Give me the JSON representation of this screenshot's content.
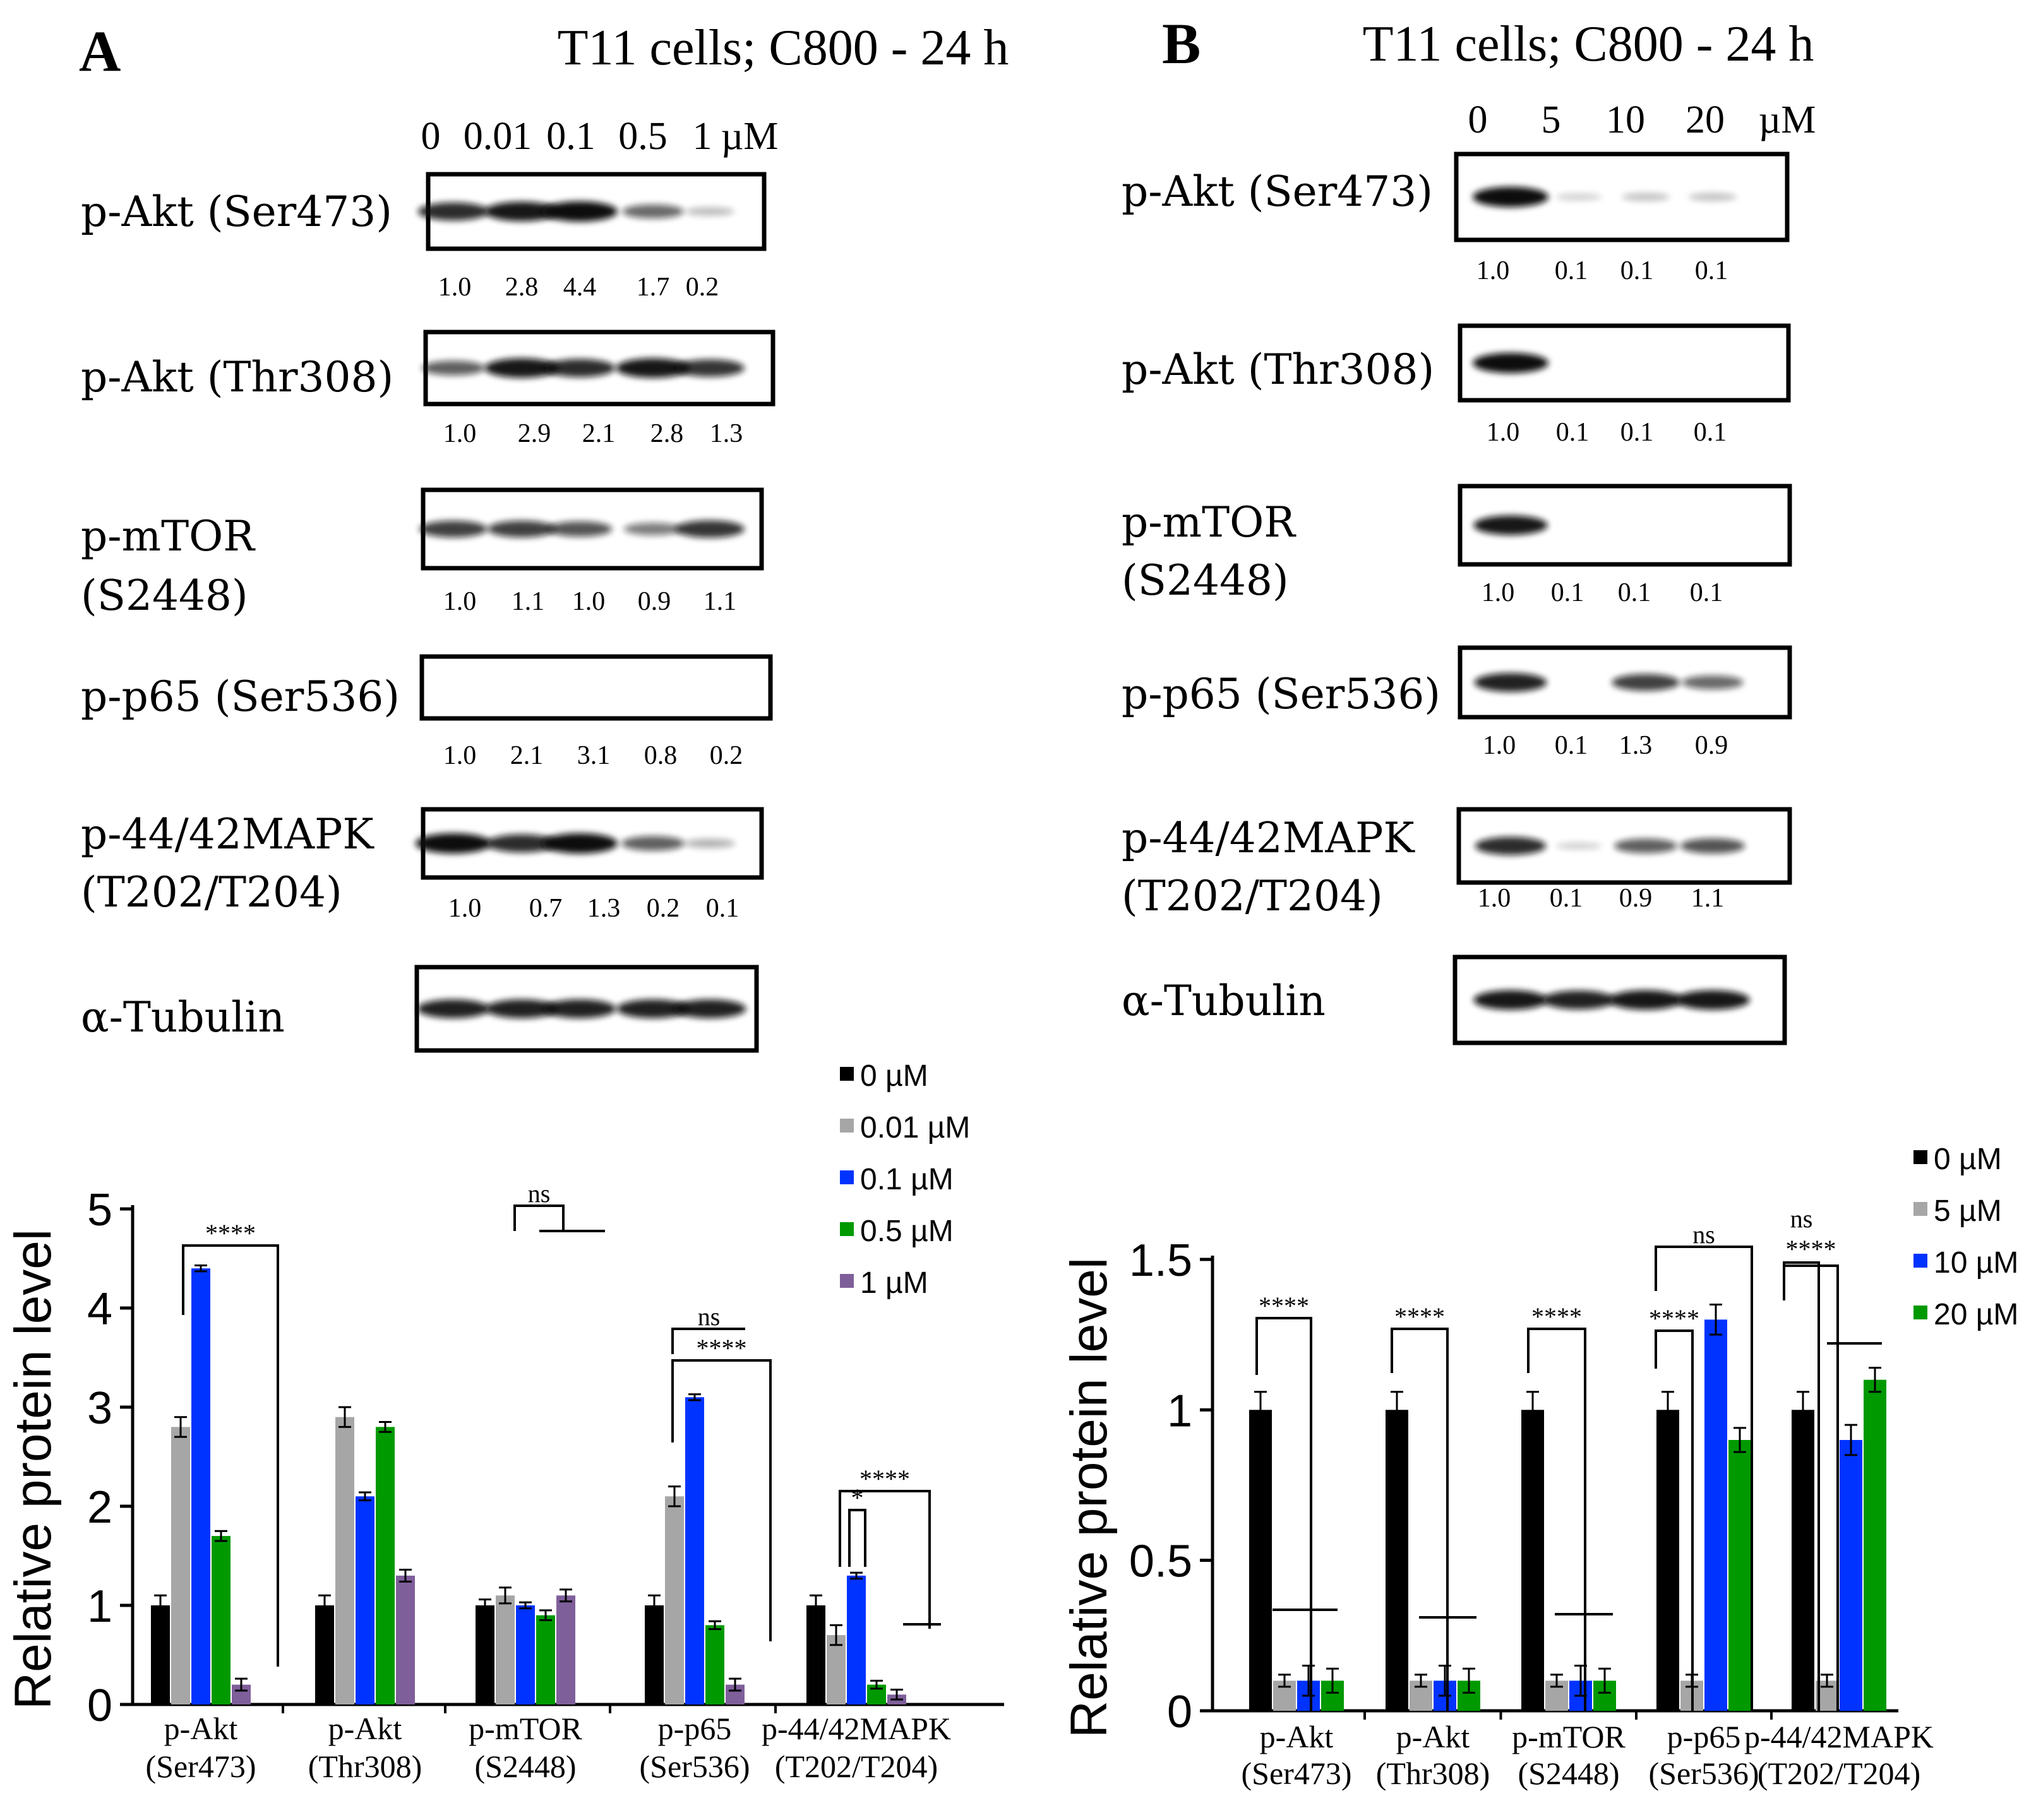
{
  "panels": [
    {
      "letter": "A",
      "title": "T11 cells; C800 - 24 h",
      "concentrations": [
        "0",
        "0.01",
        "0.1",
        "0.5",
        "1",
        "µM"
      ],
      "rows": [
        {
          "label": [
            "p-Akt (Ser473)"
          ],
          "quant": [
            "1.0",
            "2.8",
            "4.4",
            "1.7",
            "0.2"
          ],
          "intensity": [
            0.85,
            0.95,
            1.0,
            0.55,
            0.15
          ]
        },
        {
          "label": [
            "p-Akt (Thr308)"
          ],
          "quant": [
            "1.0",
            "2.9",
            "2.1",
            "2.8",
            "1.3"
          ],
          "intensity": [
            0.6,
            0.95,
            0.85,
            0.95,
            0.8
          ]
        },
        {
          "label": [
            "p-mTOR",
            "(S2448)"
          ],
          "quant": [
            "1.0",
            "1.1",
            "1.0",
            "0.9",
            "1.1"
          ],
          "intensity": [
            0.75,
            0.75,
            0.65,
            0.45,
            0.8
          ]
        },
        {
          "label": [
            "p-p65 (Ser536)"
          ],
          "quant": [
            "1.0",
            "2.1",
            "3.1",
            "0.8",
            "0.2"
          ],
          "intensity": [
            0,
            0,
            0,
            0,
            0
          ]
        },
        {
          "label": [
            "p-44/42MAPK",
            "(T202/T204)"
          ],
          "quant": [
            "1.0",
            "0.7",
            "1.3",
            "0.2",
            "0.1"
          ],
          "intensity": [
            1.0,
            0.85,
            1.0,
            0.6,
            0.2
          ]
        },
        {
          "label": [
            "α-Tubulin"
          ],
          "quant": [],
          "intensity": [
            0.9,
            0.9,
            0.9,
            0.9,
            0.9
          ]
        }
      ]
    },
    {
      "letter": "B",
      "title": "T11 cells; C800 - 24 h",
      "concentrations": [
        "0",
        "5",
        "10",
        "20",
        "µM"
      ],
      "rows": [
        {
          "label": [
            "p-Akt (Ser473)"
          ],
          "quant": [
            "1.0",
            "0.1",
            "0.1",
            "0.1"
          ],
          "intensity": [
            1.0,
            0.05,
            0.12,
            0.12
          ]
        },
        {
          "label": [
            "p-Akt (Thr308)"
          ],
          "quant": [
            "1.0",
            "0.1",
            "0.1",
            "0.1"
          ],
          "intensity": [
            1.0,
            0,
            0,
            0
          ]
        },
        {
          "label": [
            "p-mTOR",
            "(S2448)"
          ],
          "quant": [
            "1.0",
            "0.1",
            "0.1",
            "0.1"
          ],
          "intensity": [
            0.95,
            0,
            0,
            0
          ]
        },
        {
          "label": [
            "p-p65 (Ser536)"
          ],
          "quant": [
            "1.0",
            "0.1",
            "1.3",
            "0.9"
          ],
          "intensity": [
            0.9,
            0,
            0.75,
            0.55
          ]
        },
        {
          "label": [
            "p-44/42MAPK",
            "(T202/T204)"
          ],
          "quant": [
            "1.0",
            "0.1",
            "0.9",
            "1.1"
          ],
          "intensity": [
            0.85,
            0.05,
            0.6,
            0.65
          ]
        },
        {
          "label": [
            "α-Tubulin"
          ],
          "quant": [],
          "intensity": [
            0.95,
            0.9,
            0.95,
            0.95
          ]
        }
      ]
    }
  ],
  "chart_data": [
    {
      "type": "bar",
      "panel": "A",
      "title": "",
      "xlabel": "",
      "ylabel": "Relative protein level",
      "ylim": [
        0,
        5
      ],
      "yticks": [
        "0",
        "1",
        "2",
        "3",
        "4",
        "5"
      ],
      "categories": [
        [
          "p-Akt",
          "(Ser473)"
        ],
        [
          "p-Akt",
          "(Thr308)"
        ],
        [
          "p-mTOR",
          "(S2448)"
        ],
        [
          "p-p65",
          "(Ser536)"
        ],
        [
          "p-44/42MAPK",
          "(T202/T204)"
        ]
      ],
      "series": [
        {
          "name": "0 µM",
          "color": "#000000",
          "values": [
            1.0,
            1.0,
            1.0,
            1.0,
            1.0
          ],
          "errors": [
            0.1,
            0.1,
            0.06,
            0.1,
            0.1
          ]
        },
        {
          "name": "0.01 µM",
          "color": "#a6a6a6",
          "values": [
            2.8,
            2.9,
            1.1,
            2.1,
            0.7
          ],
          "errors": [
            0.1,
            0.1,
            0.08,
            0.1,
            0.1
          ]
        },
        {
          "name": "0.1 µM",
          "color": "#0033ff",
          "values": [
            4.4,
            2.1,
            1.0,
            3.1,
            1.3
          ],
          "errors": [
            0.03,
            0.04,
            0.03,
            0.03,
            0.03
          ]
        },
        {
          "name": "0.5 µM",
          "color": "#009900",
          "values": [
            1.7,
            2.8,
            0.9,
            0.8,
            0.2
          ],
          "errors": [
            0.05,
            0.05,
            0.05,
            0.04,
            0.04
          ]
        },
        {
          "name": "1 µM",
          "color": "#7f5f9a",
          "values": [
            0.2,
            1.3,
            1.1,
            0.2,
            0.1
          ],
          "errors": [
            0.06,
            0.06,
            0.06,
            0.06,
            0.05
          ]
        }
      ],
      "legend_position": "top-right",
      "annotations": [
        "****",
        "ns",
        "ns",
        "****",
        "*",
        "****"
      ]
    },
    {
      "type": "bar",
      "panel": "B",
      "title": "",
      "xlabel": "",
      "ylabel": "Relative protein level",
      "ylim": [
        0,
        1.5
      ],
      "yticks": [
        "0",
        "0.5",
        "1",
        "1.5"
      ],
      "categories": [
        [
          "p-Akt",
          "(Ser473)"
        ],
        [
          "p-Akt",
          "(Thr308)"
        ],
        [
          "p-mTOR",
          "(S2448)"
        ],
        [
          "p-p65",
          "(Ser536)"
        ],
        [
          "p-44/42MAPK",
          "(T202/T204)"
        ]
      ],
      "series": [
        {
          "name": "0 µM",
          "color": "#000000",
          "values": [
            1.0,
            1.0,
            1.0,
            1.0,
            1.0
          ],
          "errors": [
            0.06,
            0.06,
            0.06,
            0.06,
            0.06
          ]
        },
        {
          "name": "5 µM",
          "color": "#a6a6a6",
          "values": [
            0.1,
            0.1,
            0.1,
            0.1,
            0.1
          ],
          "errors": [
            0.02,
            0.02,
            0.02,
            0.02,
            0.02
          ]
        },
        {
          "name": "10 µM",
          "color": "#0033ff",
          "values": [
            0.1,
            0.1,
            0.1,
            1.3,
            0.9
          ],
          "errors": [
            0.05,
            0.05,
            0.05,
            0.05,
            0.05
          ]
        },
        {
          "name": "20 µM",
          "color": "#009900",
          "values": [
            0.1,
            0.1,
            0.1,
            0.9,
            1.1
          ],
          "errors": [
            0.04,
            0.04,
            0.04,
            0.04,
            0.04
          ]
        }
      ],
      "legend_position": "top-right",
      "annotations": [
        "****",
        "****",
        "****",
        "****",
        "ns",
        "****",
        "ns"
      ]
    }
  ]
}
